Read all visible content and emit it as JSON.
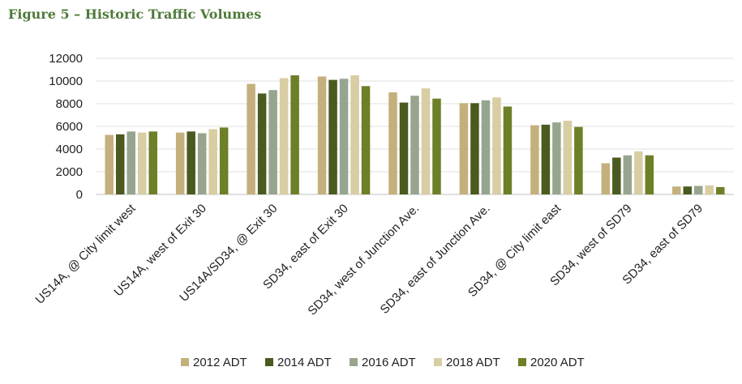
{
  "figure_title": "Figure 5 – Historic Traffic Volumes",
  "chart_data": {
    "type": "bar",
    "title": "",
    "xlabel": "",
    "ylabel": "",
    "ylim": [
      0,
      12000
    ],
    "yticks": [
      0,
      2000,
      4000,
      6000,
      8000,
      10000,
      12000
    ],
    "grid": true,
    "legend_position": "bottom",
    "categories": [
      "US14A, @ City limit west",
      "US14A, west of Exit 30",
      "US14A/SD34, @ Exit 30",
      "SD34, east of Exit 30",
      "SD34, west of Junction Ave.",
      "SD34, east of Junction Ave.",
      "SD34, @ City limit east",
      "SD34, west of SD79",
      "SD34, east of SD79"
    ],
    "series": [
      {
        "name": "2012 ADT",
        "color": "#c4b07c",
        "values": [
          5250,
          5450,
          9750,
          10400,
          9000,
          8050,
          6100,
          2750,
          700
        ]
      },
      {
        "name": "2014 ADT",
        "color": "#4b5a1e",
        "values": [
          5300,
          5550,
          8900,
          10100,
          8100,
          8050,
          6150,
          3250,
          700
        ]
      },
      {
        "name": "2016 ADT",
        "color": "#97a58f",
        "values": [
          5550,
          5400,
          9200,
          10200,
          8700,
          8300,
          6350,
          3450,
          750
        ]
      },
      {
        "name": "2018 ADT",
        "color": "#d8cda3",
        "values": [
          5450,
          5750,
          10250,
          10500,
          9350,
          8550,
          6500,
          3800,
          800
        ]
      },
      {
        "name": "2020 ADT",
        "color": "#6d7f27",
        "values": [
          5550,
          5900,
          10500,
          9550,
          8450,
          7750,
          5950,
          3450,
          650
        ]
      }
    ]
  }
}
